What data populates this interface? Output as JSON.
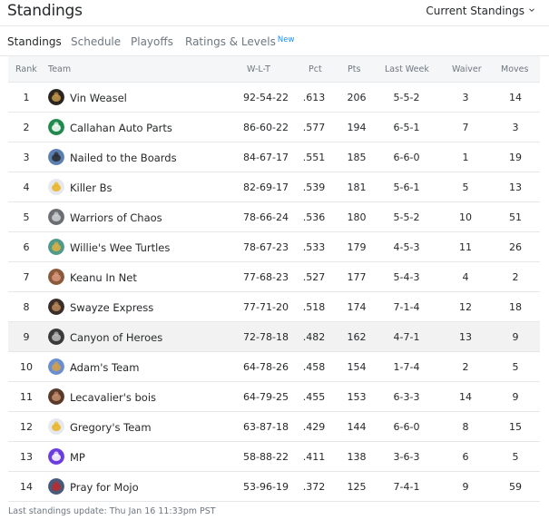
{
  "header": {
    "title": "Standings",
    "view_select": "Current Standings"
  },
  "tabs": [
    {
      "label": "Standings",
      "active": true
    },
    {
      "label": "Schedule",
      "active": false
    },
    {
      "label": "Playoffs",
      "active": false
    },
    {
      "label": "Ratings & Levels",
      "badge": "New",
      "active": false
    }
  ],
  "table": {
    "columns": {
      "rank": "Rank",
      "team": "Team",
      "wlt": "W-L-T",
      "pct": "Pct",
      "pts": "Pts",
      "last_week": "Last Week",
      "waiver": "Waiver",
      "moves": "Moves"
    },
    "rows": [
      {
        "rank": "1",
        "team": "Vin Weasel",
        "wlt": "92-54-22",
        "pct": ".613",
        "pts": "206",
        "last_week": "5-5-2",
        "waiver": "3",
        "moves": "14",
        "avatar": "photo-dark",
        "avatar_colors": [
          "#2b2520",
          "#c79a4a"
        ]
      },
      {
        "rank": "2",
        "team": "Callahan Auto Parts",
        "wlt": "86-60-22",
        "pct": ".577",
        "pts": "194",
        "last_week": "6-5-1",
        "waiver": "7",
        "moves": "3",
        "avatar": "green-logo",
        "avatar_colors": [
          "#1f8a4c",
          "#ffffff"
        ]
      },
      {
        "rank": "3",
        "team": "Nailed to the Boards",
        "wlt": "84-67-17",
        "pct": ".551",
        "pts": "185",
        "last_week": "6-6-0",
        "waiver": "1",
        "moves": "19",
        "avatar": "photo-arena",
        "avatar_colors": [
          "#5a7fb0",
          "#2a2a2a"
        ]
      },
      {
        "rank": "4",
        "team": "Killer Bs",
        "wlt": "82-69-17",
        "pct": ".539",
        "pts": "181",
        "last_week": "5-6-1",
        "waiver": "5",
        "moves": "13",
        "avatar": "yellow-jersey",
        "avatar_colors": [
          "#e6e8ef",
          "#e9b31c"
        ]
      },
      {
        "rank": "5",
        "team": "Warriors of Chaos",
        "wlt": "78-66-24",
        "pct": ".536",
        "pts": "180",
        "last_week": "5-5-2",
        "waiver": "10",
        "moves": "51",
        "avatar": "gray-jersey",
        "avatar_colors": [
          "#6b6e73",
          "#d0d2d5"
        ]
      },
      {
        "rank": "6",
        "team": "Willie's Wee Turtles",
        "wlt": "78-67-23",
        "pct": ".533",
        "pts": "179",
        "last_week": "4-5-3",
        "waiver": "11",
        "moves": "26",
        "avatar": "photo-turtle",
        "avatar_colors": [
          "#4f9a8a",
          "#e0b040"
        ]
      },
      {
        "rank": "7",
        "team": "Keanu In Net",
        "wlt": "77-68-23",
        "pct": ".527",
        "pts": "177",
        "last_week": "5-4-3",
        "waiver": "4",
        "moves": "2",
        "avatar": "photo-face",
        "avatar_colors": [
          "#8a5a3a",
          "#d99a80"
        ]
      },
      {
        "rank": "8",
        "team": "Swayze Express",
        "wlt": "77-71-20",
        "pct": ".518",
        "pts": "174",
        "last_week": "7-1-4",
        "waiver": "12",
        "moves": "18",
        "avatar": "photo-action",
        "avatar_colors": [
          "#3a2e28",
          "#c08a5a"
        ]
      },
      {
        "rank": "9",
        "team": "Canyon of Heroes",
        "wlt": "72-78-18",
        "pct": ".482",
        "pts": "162",
        "last_week": "4-7-1",
        "waiver": "13",
        "moves": "9",
        "avatar": "photo-bw",
        "avatar_colors": [
          "#3a3a3a",
          "#bdbdbd"
        ],
        "highlight": true
      },
      {
        "rank": "10",
        "team": "Adam's Team",
        "wlt": "64-78-26",
        "pct": ".458",
        "pts": "154",
        "last_week": "1-7-4",
        "waiver": "2",
        "moves": "5",
        "avatar": "photo-cartoon",
        "avatar_colors": [
          "#6a8fd0",
          "#d9a040"
        ]
      },
      {
        "rank": "11",
        "team": "Lecavalier's bois",
        "wlt": "64-79-25",
        "pct": ".455",
        "pts": "153",
        "last_week": "6-3-3",
        "waiver": "14",
        "moves": "9",
        "avatar": "photo-face2",
        "avatar_colors": [
          "#5a3a2a",
          "#c89070"
        ]
      },
      {
        "rank": "12",
        "team": "Gregory's Team",
        "wlt": "63-87-18",
        "pct": ".429",
        "pts": "144",
        "last_week": "6-6-0",
        "waiver": "8",
        "moves": "15",
        "avatar": "yellow-jersey",
        "avatar_colors": [
          "#e6e8ef",
          "#e9b31c"
        ]
      },
      {
        "rank": "13",
        "team": "MP",
        "wlt": "58-88-22",
        "pct": ".411",
        "pts": "138",
        "last_week": "3-6-3",
        "waiver": "6",
        "moves": "5",
        "avatar": "purple-jersey",
        "avatar_colors": [
          "#6b3ce0",
          "#ffffff"
        ]
      },
      {
        "rank": "14",
        "team": "Pray for Mojo",
        "wlt": "53-96-19",
        "pct": ".372",
        "pts": "125",
        "last_week": "7-4-1",
        "waiver": "9",
        "moves": "59",
        "avatar": "photo-red",
        "avatar_colors": [
          "#4a5a7a",
          "#c02a2a"
        ]
      }
    ]
  },
  "footer": {
    "last_update": "Last standings update: Thu Jan 16 11:33pm PST"
  }
}
